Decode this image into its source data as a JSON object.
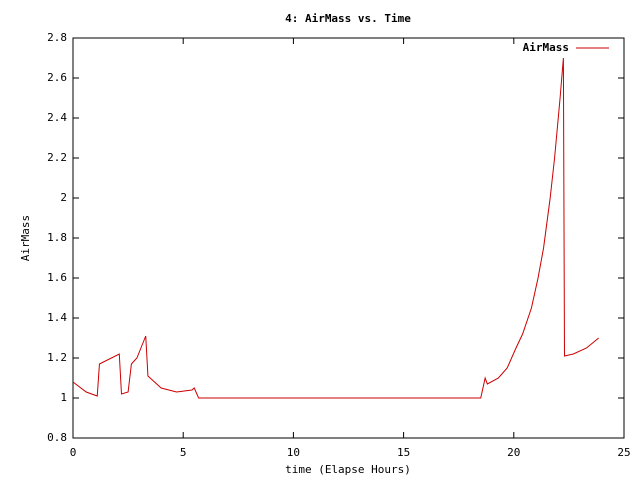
{
  "chart_data": {
    "type": "line",
    "title": "4: AirMass vs. Time",
    "x_label": "time (Elapse Hours)",
    "y_label": "AirMass",
    "x": [
      0,
      0.6,
      1.1,
      1.2,
      2.1,
      2.2,
      2.5,
      2.65,
      2.9,
      3.3,
      3.4,
      4,
      4.7,
      5.4,
      5.5,
      5.7,
      18.5,
      18.7,
      18.8,
      19.3,
      19.7,
      20.1,
      20.4,
      20.8,
      21.1,
      21.35,
      21.65,
      21.85,
      22.1,
      22.25,
      22.3,
      22.7,
      23.3,
      23.85
    ],
    "series": [
      {
        "name": "AirMass",
        "color": "#cc0000",
        "values": [
          1.08,
          1.03,
          1.01,
          1.17,
          1.22,
          1.02,
          1.03,
          1.17,
          1.2,
          1.31,
          1.11,
          1.05,
          1.03,
          1.04,
          1.05,
          1.0,
          1.0,
          1.1,
          1.07,
          1.1,
          1.15,
          1.25,
          1.32,
          1.45,
          1.6,
          1.75,
          2.0,
          2.2,
          2.5,
          2.7,
          1.21,
          1.22,
          1.25,
          1.3
        ]
      }
    ],
    "xlim": [
      0,
      25
    ],
    "xticks": [
      0,
      5,
      10,
      15,
      20,
      25
    ],
    "ylim": [
      0.8,
      2.8
    ],
    "yticks": [
      0.8,
      1,
      1.2,
      1.4,
      1.6,
      1.8,
      2,
      2.2,
      2.4,
      2.6,
      2.8
    ],
    "grid": false,
    "legend": "top-right"
  }
}
